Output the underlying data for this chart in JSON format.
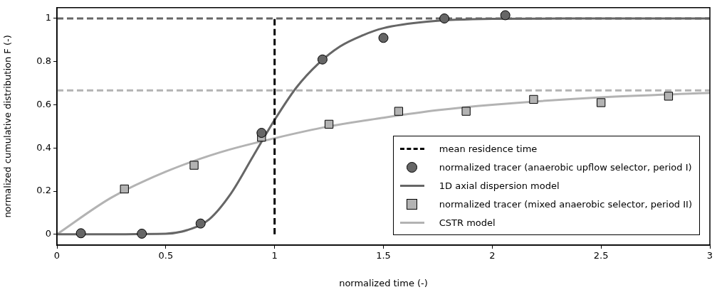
{
  "chart_data": {
    "type": "scatter",
    "xlabel": "normalized time (-)",
    "ylabel": "normalized cumulative distribution F (-)",
    "xlim": [
      0,
      3
    ],
    "ylim": [
      -0.05,
      1.05
    ],
    "xticks": [
      0,
      0.5,
      1,
      1.5,
      2,
      2.5,
      3
    ],
    "yticks": [
      0,
      0.2,
      0.4,
      0.6,
      0.8,
      1
    ],
    "grid": false,
    "legend": "bottom right",
    "ref_lines": [
      {
        "axis": "y",
        "value": 1,
        "color": "#666666",
        "line_style": "dashed"
      },
      {
        "axis": "y",
        "value": 0.667,
        "color": "#b3b3b3",
        "line_style": "dashed"
      }
    ],
    "series": [
      {
        "name": "mean residence time",
        "type": "line",
        "color": "#000000",
        "line_style": "dashed",
        "marker": "none",
        "x": [
          1,
          1
        ],
        "values": [
          0,
          1
        ]
      },
      {
        "name": "normalized tracer (anaerobic upflow selector, period I)",
        "type": "scatter",
        "color": "#666666",
        "marker": "circle",
        "x": [
          0.11,
          0.39,
          0.66,
          0.94,
          1.22,
          1.5,
          1.78,
          2.06
        ],
        "values": [
          0.005,
          0.003,
          0.05,
          0.47,
          0.81,
          0.91,
          1.0,
          1.015
        ]
      },
      {
        "name": "1D axial dispersion model",
        "type": "line",
        "color": "#666666",
        "line_style": "solid",
        "marker": "none",
        "x": [
          0,
          0.5,
          0.6,
          0.7,
          0.8,
          0.9,
          1.0,
          1.1,
          1.2,
          1.3,
          1.4,
          1.5,
          1.7,
          2,
          2.5,
          3
        ],
        "values": [
          0,
          0.003,
          0.02,
          0.07,
          0.19,
          0.36,
          0.53,
          0.68,
          0.79,
          0.87,
          0.92,
          0.955,
          0.985,
          0.998,
          1,
          1
        ]
      },
      {
        "name": "normalized tracer (mixed anaerobic selector, period II)",
        "type": "scatter",
        "color": "#b3b3b3",
        "marker": "square",
        "x": [
          0.31,
          0.63,
          0.94,
          1.25,
          1.57,
          1.88,
          2.19,
          2.5,
          2.81
        ],
        "values": [
          0.21,
          0.32,
          0.45,
          0.51,
          0.57,
          0.57,
          0.625,
          0.61,
          0.64
        ]
      },
      {
        "name": "CSTR model",
        "type": "line",
        "color": "#b3b3b3",
        "line_style": "solid",
        "marker": "none",
        "x": [
          0,
          0.25,
          0.5,
          0.75,
          1,
          1.25,
          1.5,
          1.75,
          2,
          2.5,
          3
        ],
        "values": [
          0,
          0.17,
          0.29,
          0.38,
          0.445,
          0.5,
          0.54,
          0.575,
          0.6,
          0.635,
          0.655
        ]
      }
    ]
  }
}
